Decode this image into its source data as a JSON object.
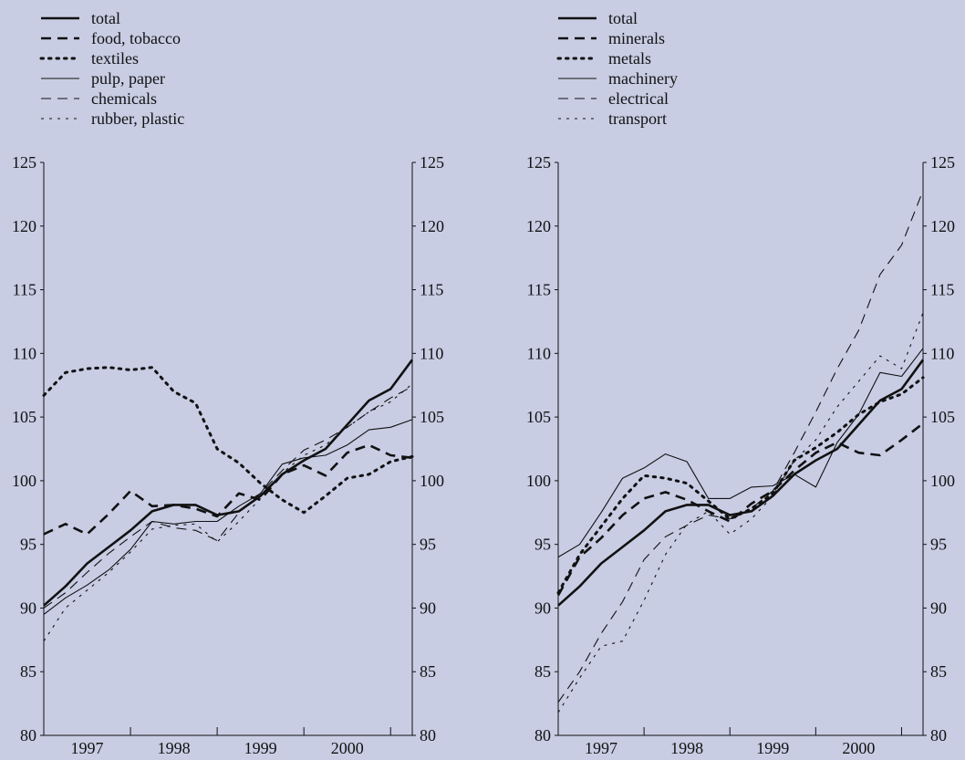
{
  "colors": {
    "background": "#c8cde4",
    "lines": "#111111"
  },
  "chart_data": [
    {
      "type": "line",
      "x_ticks": [
        "1997",
        "1998",
        "1999",
        "2000"
      ],
      "y_ticks": [
        "80",
        "85",
        "90",
        "95",
        "100",
        "105",
        "110",
        "115",
        "120",
        "125"
      ],
      "ylim": [
        80,
        125
      ],
      "xlim": [
        1996.5,
        2000.75
      ],
      "legend_position": "top-left",
      "series": [
        {
          "name": "total",
          "style": "solid-thick",
          "x": [
            1996.5,
            1996.75,
            1997.0,
            1997.25,
            1997.5,
            1997.75,
            1998.0,
            1998.25,
            1998.5,
            1998.75,
            1999.0,
            1999.25,
            1999.5,
            1999.75,
            2000.0,
            2000.25,
            2000.5,
            2000.75
          ],
          "y": [
            90.2,
            91.7,
            93.5,
            94.8,
            96.1,
            97.6,
            98.1,
            98.1,
            97.3,
            97.6,
            98.8,
            100.5,
            101.6,
            102.5,
            104.4,
            106.3,
            107.2,
            109.5
          ]
        },
        {
          "name": "food, tobacco",
          "style": "dashed-thick",
          "x": [
            1996.5,
            1996.75,
            1997.0,
            1997.25,
            1997.5,
            1997.75,
            1998.0,
            1998.25,
            1998.5,
            1998.75,
            1999.0,
            1999.25,
            1999.5,
            1999.75,
            2000.0,
            2000.25,
            2000.5,
            2000.75
          ],
          "y": [
            95.8,
            96.6,
            95.8,
            97.4,
            99.2,
            98.0,
            98.1,
            97.8,
            97.2,
            99.0,
            98.5,
            100.5,
            101.2,
            100.4,
            102.2,
            102.8,
            102.0,
            101.8
          ]
        },
        {
          "name": "textiles",
          "style": "dotted-thick",
          "x": [
            1996.5,
            1996.75,
            1997.0,
            1997.25,
            1997.5,
            1997.75,
            1998.0,
            1998.25,
            1998.5,
            1998.75,
            1999.0,
            1999.25,
            1999.5,
            1999.75,
            2000.0,
            2000.25,
            2000.5,
            2000.75
          ],
          "y": [
            106.7,
            108.5,
            108.8,
            108.9,
            108.7,
            108.9,
            107.0,
            106.1,
            102.5,
            101.4,
            99.8,
            98.5,
            97.5,
            98.8,
            100.2,
            100.5,
            101.5,
            101.9
          ]
        },
        {
          "name": "pulp, paper",
          "style": "solid-thin",
          "x": [
            1996.5,
            1996.75,
            1997.0,
            1997.25,
            1997.5,
            1997.75,
            1998.0,
            1998.25,
            1998.5,
            1998.75,
            1999.0,
            1999.25,
            1999.5,
            1999.75,
            2000.0,
            2000.25,
            2000.5,
            2000.75
          ],
          "y": [
            89.5,
            90.8,
            91.8,
            93.0,
            94.6,
            96.8,
            96.6,
            96.8,
            96.8,
            98.0,
            99.0,
            101.3,
            101.8,
            102.0,
            102.8,
            104.0,
            104.2,
            104.8
          ]
        },
        {
          "name": "chemicals",
          "style": "dashed-thin",
          "x": [
            1996.5,
            1996.75,
            1997.0,
            1997.25,
            1997.5,
            1997.75,
            1998.0,
            1998.25,
            1998.5,
            1998.75,
            1999.0,
            1999.25,
            1999.5,
            1999.75,
            2000.0,
            2000.25,
            2000.5,
            2000.75
          ],
          "y": [
            90.0,
            91.2,
            92.8,
            94.3,
            95.6,
            96.8,
            96.3,
            96.1,
            95.3,
            97.5,
            99.0,
            100.8,
            102.4,
            103.2,
            104.2,
            105.4,
            106.5,
            107.4
          ]
        },
        {
          "name": "rubber, plastic",
          "style": "dotted-thin",
          "x": [
            1996.5,
            1996.75,
            1997.0,
            1997.25,
            1997.5,
            1997.75,
            1998.0,
            1998.25,
            1998.5,
            1998.75,
            1999.0,
            1999.25,
            1999.5,
            1999.75,
            2000.0,
            2000.25,
            2000.5,
            2000.75
          ],
          "y": [
            87.4,
            90.0,
            91.4,
            92.8,
            94.4,
            96.2,
            96.5,
            96.6,
            95.2,
            96.8,
            98.6,
            100.6,
            102.0,
            102.8,
            104.2,
            105.4,
            106.2,
            107.6
          ]
        }
      ]
    },
    {
      "type": "line",
      "x_ticks": [
        "1997",
        "1998",
        "1999",
        "2000"
      ],
      "y_ticks": [
        "80",
        "85",
        "90",
        "95",
        "100",
        "105",
        "110",
        "115",
        "120",
        "125"
      ],
      "ylim": [
        80,
        125
      ],
      "xlim": [
        1996.5,
        2000.75
      ],
      "legend_position": "top-left",
      "series": [
        {
          "name": "total",
          "style": "solid-thick",
          "x": [
            1996.5,
            1996.75,
            1997.0,
            1997.25,
            1997.5,
            1997.75,
            1998.0,
            1998.25,
            1998.5,
            1998.75,
            1999.0,
            1999.25,
            1999.5,
            1999.75,
            2000.0,
            2000.25,
            2000.5,
            2000.75
          ],
          "y": [
            90.2,
            91.7,
            93.5,
            94.8,
            96.1,
            97.6,
            98.1,
            98.1,
            97.3,
            97.6,
            98.8,
            100.5,
            101.6,
            102.5,
            104.4,
            106.3,
            107.2,
            109.5
          ]
        },
        {
          "name": "minerals",
          "style": "dashed-thick",
          "x": [
            1996.5,
            1996.75,
            1997.0,
            1997.25,
            1997.5,
            1997.75,
            1998.0,
            1998.25,
            1998.5,
            1998.75,
            1999.0,
            1999.25,
            1999.5,
            1999.75,
            2000.0,
            2000.25,
            2000.5,
            2000.75
          ],
          "y": [
            91.0,
            94.0,
            95.5,
            97.3,
            98.6,
            99.1,
            98.5,
            97.6,
            96.8,
            98.2,
            99.2,
            100.8,
            102.2,
            103.0,
            102.2,
            102.0,
            103.2,
            104.5
          ]
        },
        {
          "name": "metals",
          "style": "dotted-thick",
          "x": [
            1996.5,
            1996.75,
            1997.0,
            1997.25,
            1997.5,
            1997.75,
            1998.0,
            1998.25,
            1998.5,
            1998.75,
            1999.0,
            1999.25,
            1999.5,
            1999.75,
            2000.0,
            2000.25,
            2000.5,
            2000.75
          ],
          "y": [
            91.2,
            94.2,
            96.4,
            98.6,
            100.4,
            100.2,
            99.8,
            98.4,
            97.0,
            97.8,
            99.0,
            101.6,
            102.6,
            103.8,
            105.2,
            106.2,
            106.8,
            108.1
          ]
        },
        {
          "name": "machinery",
          "style": "solid-thin",
          "x": [
            1996.5,
            1996.75,
            1997.0,
            1997.25,
            1997.5,
            1997.75,
            1998.0,
            1998.25,
            1998.5,
            1998.75,
            1999.0,
            1999.25,
            1999.5,
            1999.75,
            2000.0,
            2000.25,
            2000.5,
            2000.75
          ],
          "y": [
            94.0,
            95.0,
            97.5,
            100.2,
            101.0,
            102.1,
            101.5,
            98.6,
            98.6,
            99.5,
            99.6,
            100.5,
            99.5,
            103.0,
            105.2,
            108.5,
            108.2,
            110.4
          ]
        },
        {
          "name": "electrical",
          "style": "dashed-thin",
          "x": [
            1996.5,
            1996.75,
            1997.0,
            1997.25,
            1997.5,
            1997.75,
            1998.0,
            1998.25,
            1998.5,
            1998.75,
            1999.0,
            1999.25,
            1999.5,
            1999.75,
            2000.0,
            2000.25,
            2000.5,
            2000.75
          ],
          "y": [
            82.6,
            85.0,
            88.0,
            90.5,
            93.8,
            95.6,
            96.5,
            97.3,
            97.0,
            97.8,
            99.2,
            102.2,
            105.4,
            108.8,
            111.8,
            116.2,
            118.5,
            122.8
          ]
        },
        {
          "name": "transport",
          "style": "dotted-thin",
          "x": [
            1996.5,
            1996.75,
            1997.0,
            1997.25,
            1997.5,
            1997.75,
            1998.0,
            1998.25,
            1998.5,
            1998.75,
            1999.0,
            1999.25,
            1999.5,
            1999.75,
            2000.0,
            2000.25,
            2000.5,
            2000.75
          ],
          "y": [
            81.8,
            84.5,
            87.0,
            87.4,
            90.6,
            94.2,
            96.6,
            97.6,
            95.8,
            97.0,
            98.8,
            101.6,
            103.2,
            105.8,
            107.8,
            109.8,
            108.8,
            113.2
          ]
        }
      ]
    }
  ]
}
